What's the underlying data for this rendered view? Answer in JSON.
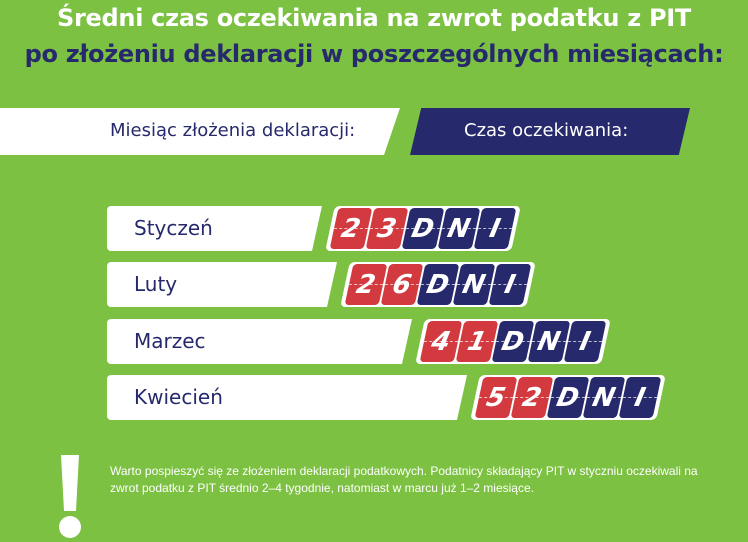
{
  "title_line1": "Średni czas oczekiwania na zwrot podatku z PIT",
  "title_line2": "po złożeniu deklaracji w poszczególnych miesiącach:",
  "header": {
    "left": "Miesiąc złożenia deklaracji:",
    "right": "Czas oczekiwania:"
  },
  "colors": {
    "background": "#7cc142",
    "number_tile": "#d23a3f",
    "unit_tile": "#26296b",
    "text": "#26296b"
  },
  "chart_data": {
    "type": "bar",
    "orientation": "horizontal",
    "categories": [
      "Styczeń",
      "Luty",
      "Marzec",
      "Kwiecień"
    ],
    "values": [
      23,
      26,
      41,
      52
    ],
    "unit": "DNI"
  },
  "note": "Warto pospieszyć się ze złożeniem deklaracji podatkowych. Podatnicy składający PIT w styczniu oczekiwali na zwrot podatku z PIT średnio 2–4 tygodnie, natomiast w marcu już 1–2 miesiące.",
  "note_icon": "exclamation-icon"
}
